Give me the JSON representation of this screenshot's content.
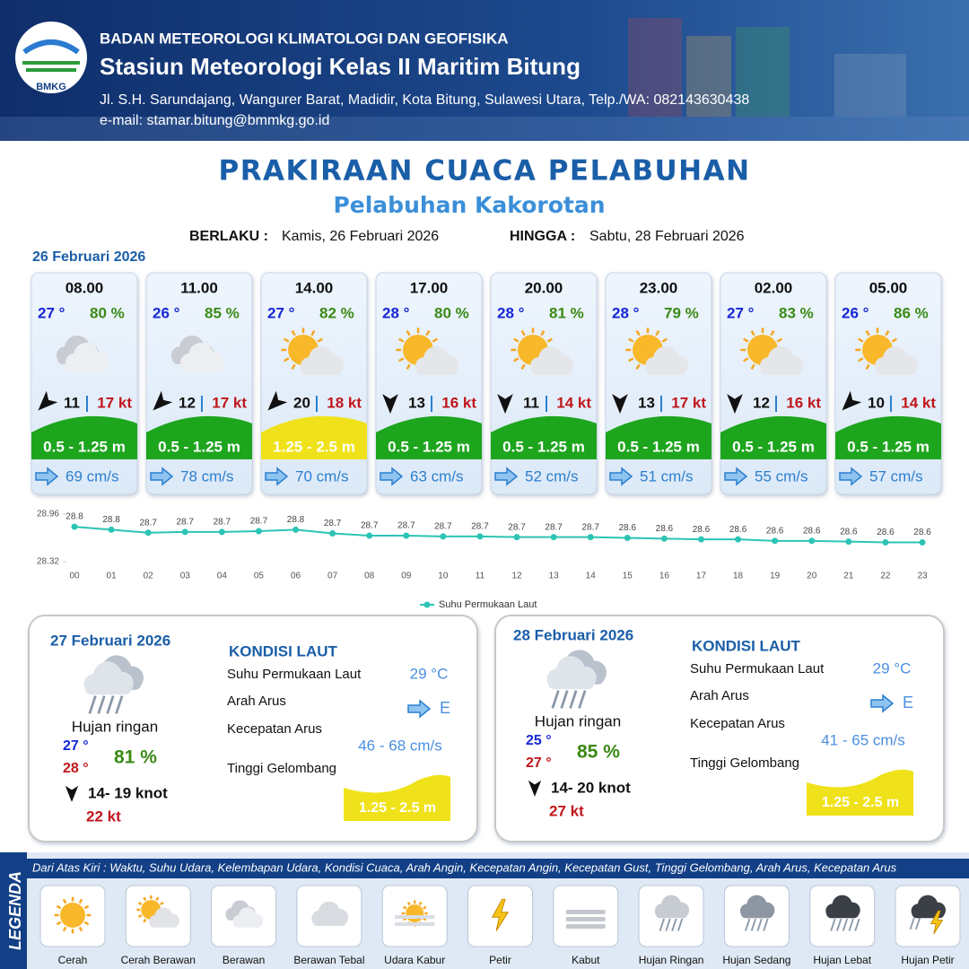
{
  "header": {
    "agency": "BADAN METEOROLOGI KLIMATOLOGI DAN GEOFISIKA",
    "station": "Stasiun Meteorologi Kelas II Maritim Bitung",
    "address": "Jl. S.H. Sarundajang, Wangurer Barat, Madidir, Kota Bitung, Sulawesi Utara, Telp./WA: 082143630438",
    "email": "e-mail: stamar.bitung@bmmkg.go.id",
    "logo_text": "BMKG"
  },
  "title": "PRAKIRAAN CUACA PELABUHAN",
  "port": "Pelabuhan Kakorotan",
  "validity": {
    "from_label": "BERLAKU :",
    "from": "Kamis, 26 Februari 2026",
    "to_label": "HINGGA :",
    "to": "Sabtu, 28 Februari 2026"
  },
  "day1_date": "26 Februari 2026",
  "hourly": [
    {
      "time": "08.00",
      "temp": "27 °",
      "humidity": "80 %",
      "wind": "11",
      "gust": "17 kt",
      "wave": "0.5 - 1.25 m",
      "wave_color": "#1ea51e",
      "current": "69 cm/s"
    },
    {
      "time": "11.00",
      "temp": "26 °",
      "humidity": "85 %",
      "wind": "12",
      "gust": "17 kt",
      "wave": "0.5 - 1.25 m",
      "wave_color": "#1ea51e",
      "current": "78 cm/s"
    },
    {
      "time": "14.00",
      "temp": "27 °",
      "humidity": "82 %",
      "wind": "20",
      "gust": "18 kt",
      "wave": "1.25 - 2.5 m",
      "wave_color": "#f0e21a",
      "current": "70 cm/s"
    },
    {
      "time": "17.00",
      "temp": "28 °",
      "humidity": "80 %",
      "wind": "13",
      "gust": "16 kt",
      "wave": "0.5 - 1.25 m",
      "wave_color": "#1ea51e",
      "current": "63 cm/s"
    },
    {
      "time": "20.00",
      "temp": "28 °",
      "humidity": "81 %",
      "wind": "11",
      "gust": "14 kt",
      "wave": "0.5 - 1.25 m",
      "wave_color": "#1ea51e",
      "current": "52 cm/s"
    },
    {
      "time": "23.00",
      "temp": "28 °",
      "humidity": "79 %",
      "wind": "13",
      "gust": "17 kt",
      "wave": "0.5 - 1.25 m",
      "wave_color": "#1ea51e",
      "current": "51 cm/s"
    },
    {
      "time": "02.00",
      "temp": "27 °",
      "humidity": "83 %",
      "wind": "12",
      "gust": "16 kt",
      "wave": "0.5 - 1.25 m",
      "wave_color": "#1ea51e",
      "current": "55 cm/s"
    },
    {
      "time": "05.00",
      "temp": "26 °",
      "humidity": "86 %",
      "wind": "10",
      "gust": "14 kt",
      "wave": "0.5 - 1.25 m",
      "wave_color": "#1ea51e",
      "current": "57 cm/s"
    }
  ],
  "chart_data": {
    "type": "line",
    "categories": [
      "00",
      "01",
      "02",
      "03",
      "04",
      "05",
      "06",
      "07",
      "08",
      "09",
      "10",
      "11",
      "12",
      "13",
      "14",
      "15",
      "16",
      "17",
      "18",
      "19",
      "20",
      "21",
      "22",
      "23"
    ],
    "series": [
      {
        "name": "Suhu Permukaan Laut",
        "color": "#2cc4b4",
        "values": [
          28.79,
          28.75,
          28.71,
          28.72,
          28.72,
          28.73,
          28.75,
          28.7,
          28.67,
          28.67,
          28.66,
          28.66,
          28.65,
          28.65,
          28.65,
          28.64,
          28.63,
          28.62,
          28.62,
          28.6,
          28.6,
          28.59,
          28.58,
          28.58
        ],
        "value_labels": [
          "28.8",
          "28.8",
          "28.7",
          "28.7",
          "28.7",
          "28.7",
          "28.8",
          "28.7",
          "28.7",
          "28.7",
          "28.7",
          "28.7",
          "28.7",
          "28.7",
          "28.7",
          "28.6",
          "28.6",
          "28.6",
          "28.6",
          "28.6",
          "28.6",
          "28.6",
          "28.6",
          "28.6"
        ]
      }
    ],
    "ylim": [
      28.32,
      28.96
    ],
    "yticks": [
      28.32,
      28.96
    ],
    "legend": "bottom"
  },
  "days": [
    {
      "date": "27 Februari 2026",
      "condition": "Hujan ringan",
      "temp_min": "27 °",
      "temp_max": "28 °",
      "humidity": "81 %",
      "wind": "14- 19 knot",
      "gust": "22 kt",
      "sea": {
        "title": "KONDISI LAUT",
        "sst_label": "Suhu Permukaan Laut",
        "sst": "29 °C",
        "dir_label": "Arah Arus",
        "dir": "E",
        "speed_label": "Kecepatan Arus",
        "speed": "46 - 68 cm/s",
        "wave_label": "Tinggi Gelombang",
        "wave": "1.25 - 2.5 m"
      }
    },
    {
      "date": "28 Februari 2026",
      "condition": "Hujan ringan",
      "temp_min": "25 °",
      "temp_max": "27 °",
      "humidity": "85 %",
      "wind": "14- 20 knot",
      "gust": "27 kt",
      "sea": {
        "title": "KONDISI LAUT",
        "sst_label": "Suhu Permukaan Laut",
        "sst": "29 °C",
        "dir_label": "Arah Arus",
        "dir": "E",
        "speed_label": "Kecepatan Arus",
        "speed": "41 - 65 cm/s",
        "wave_label": "Tinggi Gelombang",
        "wave": "1.25 - 2.5 m"
      }
    }
  ],
  "legend": {
    "title": "LEGENDA",
    "description": "Dari Atas Kiri : Waktu, Suhu Udara, Kelembapan Udara, Kondisi Cuaca, Arah Angin, Kecepatan Angin, Kecepatan Gust, Tinggi Gelombang, Arah Arus, Kecepatan Arus",
    "items": [
      "Cerah",
      "Cerah Berawan",
      "Berawan",
      "Berawan Tebal",
      "Udara Kabur",
      "Petir",
      "Kabut",
      "Hujan Ringan",
      "Hujan Sedang",
      "Hujan Lebat",
      "Hujan Petir"
    ]
  }
}
